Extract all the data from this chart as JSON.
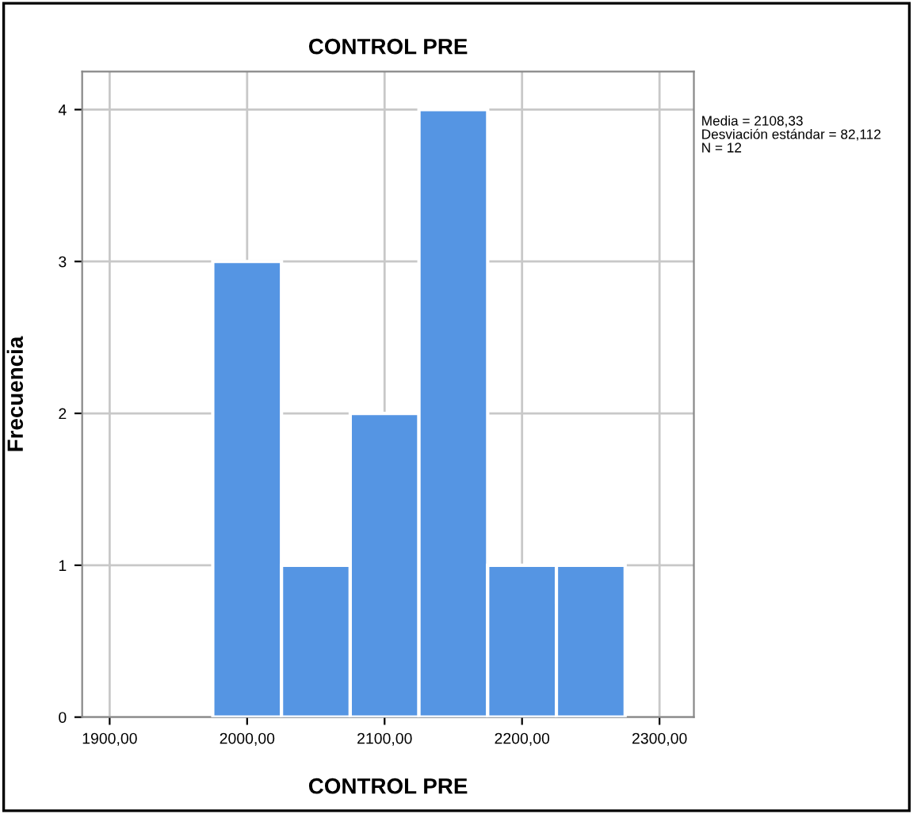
{
  "chart_data": {
    "type": "histogram",
    "title": "CONTROL PRE",
    "xlabel": "CONTROL PRE",
    "ylabel": "Frecuencia",
    "bins": [
      1975,
      2025,
      2075,
      2125,
      2175,
      2225,
      2275
    ],
    "values": [
      3,
      1,
      2,
      4,
      1,
      1
    ],
    "color": "#5595e3",
    "xlim": [
      1880,
      2325
    ],
    "ylim": [
      0,
      4.25
    ],
    "xticks": [
      {
        "value": 1900,
        "label": "1900,00"
      },
      {
        "value": 2000,
        "label": "2000,00"
      },
      {
        "value": 2100,
        "label": "2100,00"
      },
      {
        "value": 2200,
        "label": "2200,00"
      },
      {
        "value": 2300,
        "label": "2300,00"
      }
    ],
    "yticks": [
      0,
      1,
      2,
      3,
      4
    ],
    "grid": true,
    "annotations": [
      "Media = 2108,33",
      "Desviación estándar = 82,112",
      "N = 12"
    ]
  }
}
